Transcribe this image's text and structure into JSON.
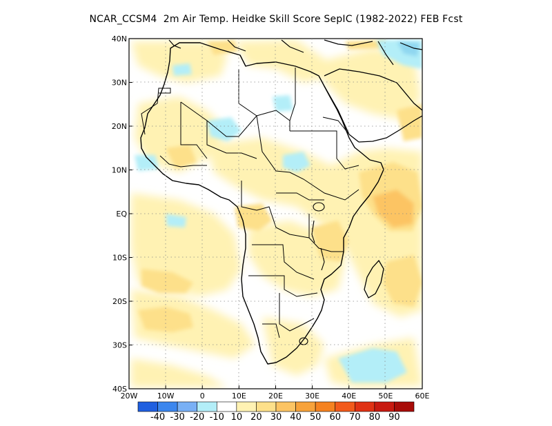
{
  "title": "NCAR_CCSM4  2m Air Temp. Heidke Skill Score SepIC (1982-2022) FEB Fcst",
  "map": {
    "lat_ticks": [
      "40N",
      "30N",
      "20N",
      "10N",
      "EQ",
      "10S",
      "20S",
      "30S",
      "40S"
    ],
    "lon_ticks": [
      "20W",
      "10W",
      "0",
      "10E",
      "20E",
      "30E",
      "40E",
      "50E",
      "60E"
    ],
    "region": {
      "lon_range": [
        -20,
        60
      ],
      "lat_range": [
        -40,
        40
      ]
    },
    "grid": "dotted",
    "field_colors": {
      "skill_10_20": "#fff2b3",
      "skill_20_30": "#fde08a",
      "skill_30_40": "#fcc463",
      "skill_40_50": "#f7a23a",
      "neg_10_20": "#b3eef8",
      "neg_20_30": "#8fd7f0",
      "border": "#000000"
    }
  },
  "colorbar": {
    "colors": [
      "#1f5fe0",
      "#3b86ee",
      "#79b0f5",
      "#b3eef8",
      "#ffffff",
      "#fff2b3",
      "#fde08a",
      "#fcc463",
      "#f7a23a",
      "#f58220",
      "#f25a1b",
      "#e03214",
      "#c81a10",
      "#a80c08"
    ],
    "labels": [
      "-40",
      "-30",
      "-20",
      "-10",
      "10",
      "20",
      "30",
      "40",
      "50",
      "60",
      "70",
      "80",
      "90"
    ]
  }
}
